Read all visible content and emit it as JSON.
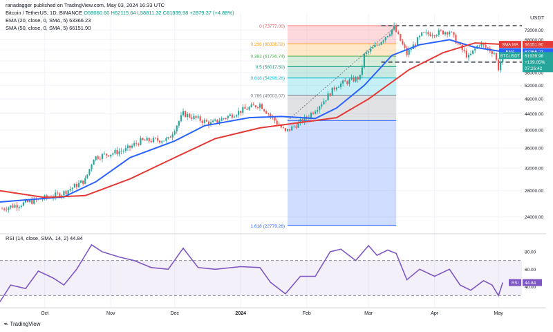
{
  "header": {
    "publisher": "ranadagger published on TradingView.com, May 03, 2024 16:33 UTC",
    "symbol": "Bitcoin / TetherUS, 1D, BINANCE",
    "ohlc": "O59060.60 H62115.64 L58811.32 C61939.98 +2879.37 (+4.88%)",
    "ema": "EMA (20, close, 0, SMA, 5) 63366.23",
    "sma": "SMA (50, close, 0, SMA, 5) 66151.90",
    "rsi": "RSI (14, close, SMA, 14, 2) 44.84"
  },
  "footer": {
    "brand": "TradingView"
  },
  "colors": {
    "up": "#26a69a",
    "down": "#ef5350",
    "ema": "#2962ff",
    "sma": "#e53935",
    "rsi": "#7e57c2",
    "axis_text": "#131722",
    "grid": "#f0f3fa"
  },
  "chart_data": {
    "type": "candlestick",
    "currency_label": "USDT",
    "price_axis": {
      "scale": "log",
      "range": [
        22000,
        76000
      ],
      "ticks": [
        24000,
        28000,
        32000,
        36000,
        40000,
        44000,
        48000,
        52000,
        56000,
        60000,
        64000,
        68000,
        72000
      ],
      "tick_labels": [
        "24000.00",
        "28000.00",
        "32000.00",
        "36000.00",
        "40000.00",
        "44000.00",
        "48000.00",
        "52000.00",
        "56000.00",
        "60000.00",
        "64000.00",
        "68000.00",
        "72000.00"
      ]
    },
    "time_axis": {
      "start": "2023-09-10",
      "end": "2024-05-12",
      "labels": [
        {
          "date": "2023-10-01",
          "text": "Oct"
        },
        {
          "date": "2023-11-01",
          "text": "Nov"
        },
        {
          "date": "2023-12-01",
          "text": "Dec"
        },
        {
          "date": "2024-01-01",
          "text": "2024"
        },
        {
          "date": "2024-02-01",
          "text": "Feb"
        },
        {
          "date": "2024-03-01",
          "text": "Mar"
        },
        {
          "date": "2024-04-01",
          "text": "Apr"
        },
        {
          "date": "2024-05-01",
          "text": "May"
        }
      ]
    },
    "price_key_points": [
      {
        "date": "2023-09-11",
        "price": 25200
      },
      {
        "date": "2023-09-25",
        "price": 26300
      },
      {
        "date": "2023-10-09",
        "price": 27500
      },
      {
        "date": "2023-10-20",
        "price": 29800
      },
      {
        "date": "2023-10-24",
        "price": 34000
      },
      {
        "date": "2023-11-08",
        "price": 35600
      },
      {
        "date": "2023-11-15",
        "price": 37500
      },
      {
        "date": "2023-11-28",
        "price": 37800
      },
      {
        "date": "2023-12-05",
        "price": 44000
      },
      {
        "date": "2023-12-18",
        "price": 41500
      },
      {
        "date": "2024-01-02",
        "price": 45000
      },
      {
        "date": "2024-01-10",
        "price": 46500
      },
      {
        "date": "2024-01-22",
        "price": 39500
      },
      {
        "date": "2024-02-01",
        "price": 43000
      },
      {
        "date": "2024-02-09",
        "price": 47500
      },
      {
        "date": "2024-02-15",
        "price": 52000
      },
      {
        "date": "2024-02-26",
        "price": 54500
      },
      {
        "date": "2024-02-28",
        "price": 62000
      },
      {
        "date": "2024-03-05",
        "price": 66000
      },
      {
        "date": "2024-03-13",
        "price": 73000
      },
      {
        "date": "2024-03-19",
        "price": 62500
      },
      {
        "date": "2024-03-26",
        "price": 70000
      },
      {
        "date": "2024-04-08",
        "price": 71500
      },
      {
        "date": "2024-04-13",
        "price": 65000
      },
      {
        "date": "2024-04-17",
        "price": 61200
      },
      {
        "date": "2024-04-22",
        "price": 66500
      },
      {
        "date": "2024-04-29",
        "price": 63000
      },
      {
        "date": "2024-05-01",
        "price": 57500
      },
      {
        "date": "2024-05-03",
        "price": 61940
      }
    ],
    "series": [
      {
        "name": "EMA",
        "value": 63366.23,
        "values": [
          {
            "date": "2023-09-10",
            "price": 26200
          },
          {
            "date": "2023-10-10",
            "price": 27000
          },
          {
            "date": "2023-10-25",
            "price": 29500
          },
          {
            "date": "2023-11-10",
            "price": 34000
          },
          {
            "date": "2023-12-01",
            "price": 37500
          },
          {
            "date": "2023-12-15",
            "price": 41000
          },
          {
            "date": "2024-01-05",
            "price": 43000
          },
          {
            "date": "2024-01-20",
            "price": 43300
          },
          {
            "date": "2024-02-05",
            "price": 42800
          },
          {
            "date": "2024-02-15",
            "price": 45500
          },
          {
            "date": "2024-02-28",
            "price": 52000
          },
          {
            "date": "2024-03-12",
            "price": 62000
          },
          {
            "date": "2024-03-25",
            "price": 66000
          },
          {
            "date": "2024-04-08",
            "price": 68000
          },
          {
            "date": "2024-04-20",
            "price": 65000
          },
          {
            "date": "2024-05-03",
            "price": 63366
          }
        ]
      },
      {
        "name": "SMA",
        "value": 66151.9,
        "values": [
          {
            "date": "2023-09-10",
            "price": 28000
          },
          {
            "date": "2023-10-01",
            "price": 26900
          },
          {
            "date": "2023-10-20",
            "price": 27200
          },
          {
            "date": "2023-11-10",
            "price": 30000
          },
          {
            "date": "2023-12-01",
            "price": 34000
          },
          {
            "date": "2023-12-20",
            "price": 38000
          },
          {
            "date": "2024-01-10",
            "price": 40500
          },
          {
            "date": "2024-02-01",
            "price": 42000
          },
          {
            "date": "2024-02-15",
            "price": 43000
          },
          {
            "date": "2024-03-01",
            "price": 48000
          },
          {
            "date": "2024-03-20",
            "price": 57000
          },
          {
            "date": "2024-04-05",
            "price": 63000
          },
          {
            "date": "2024-04-20",
            "price": 66700
          },
          {
            "date": "2024-05-03",
            "price": 66152
          }
        ]
      }
    ],
    "fibonacci": {
      "date_range": [
        "2024-01-23",
        "2024-03-14"
      ],
      "levels": [
        {
          "ratio": "0",
          "price": 73777.0,
          "label": "0 (73777.00)"
        },
        {
          "ratio": "0.236",
          "price": 66338.52,
          "label": "0.236 (66338.52)"
        },
        {
          "ratio": "0.382",
          "price": 61736.74,
          "label": "0.382 (61736.74)"
        },
        {
          "ratio": "0.5",
          "price": 58017.5,
          "label": "0.5 (58017.50)"
        },
        {
          "ratio": "0.618",
          "price": 54298.26,
          "label": "0.618 (54298.26)"
        },
        {
          "ratio": "0.786",
          "price": 49003.07,
          "label": "0.786 (49003.07)"
        },
        {
          "ratio": "1",
          "price": 42258.1,
          "label": ""
        },
        {
          "ratio": "1.618",
          "price": 22779.26,
          "label": "1.618 (22779.26)"
        }
      ],
      "colors": [
        "#f7525f",
        "#ff9800",
        "#4caf50",
        "#089981",
        "#00bcd4",
        "#787b86",
        "#2962ff"
      ]
    },
    "horizontal_levels": [
      {
        "price": 73777,
        "label": ""
      },
      {
        "price": 59600,
        "label": "59600.00"
      }
    ],
    "price_labels": [
      {
        "text": "SMA:MA",
        "value": "66151.90",
        "price": 66151.9,
        "color": "#e53935"
      },
      {
        "text": "EMA",
        "value": "63366.23",
        "price": 63366.23,
        "color": "#2962ff"
      },
      {
        "text": "BTCUSDT",
        "value": "61939.98",
        "extra": "+139.05%",
        "timer": "07:26:42",
        "price": 61939.98,
        "color": "#26a69a"
      }
    ],
    "rsi": {
      "name": "RSI",
      "value": 44.84,
      "levels": [
        70,
        30
      ],
      "ticks": [
        40,
        60,
        80
      ],
      "tick_labels": [
        "40.00",
        "60.00",
        "80.00"
      ],
      "range": [
        20,
        95
      ],
      "values": [
        {
          "date": "2023-09-10",
          "v": 23
        },
        {
          "date": "2023-09-15",
          "v": 42
        },
        {
          "date": "2023-09-22",
          "v": 38
        },
        {
          "date": "2023-09-28",
          "v": 58
        },
        {
          "date": "2023-10-05",
          "v": 50
        },
        {
          "date": "2023-10-10",
          "v": 42
        },
        {
          "date": "2023-10-16",
          "v": 60
        },
        {
          "date": "2023-10-23",
          "v": 88
        },
        {
          "date": "2023-10-28",
          "v": 80
        },
        {
          "date": "2023-11-05",
          "v": 74
        },
        {
          "date": "2023-11-12",
          "v": 70
        },
        {
          "date": "2023-11-20",
          "v": 62
        },
        {
          "date": "2023-11-28",
          "v": 60
        },
        {
          "date": "2023-12-05",
          "v": 84
        },
        {
          "date": "2023-12-12",
          "v": 62
        },
        {
          "date": "2023-12-20",
          "v": 60
        },
        {
          "date": "2024-01-01",
          "v": 63
        },
        {
          "date": "2024-01-10",
          "v": 62
        },
        {
          "date": "2024-01-15",
          "v": 45
        },
        {
          "date": "2024-01-22",
          "v": 32
        },
        {
          "date": "2024-01-29",
          "v": 52
        },
        {
          "date": "2024-02-05",
          "v": 52
        },
        {
          "date": "2024-02-12",
          "v": 80
        },
        {
          "date": "2024-02-17",
          "v": 83
        },
        {
          "date": "2024-02-24",
          "v": 70
        },
        {
          "date": "2024-03-01",
          "v": 87
        },
        {
          "date": "2024-03-05",
          "v": 76
        },
        {
          "date": "2024-03-10",
          "v": 82
        },
        {
          "date": "2024-03-14",
          "v": 78
        },
        {
          "date": "2024-03-19",
          "v": 48
        },
        {
          "date": "2024-03-25",
          "v": 60
        },
        {
          "date": "2024-04-01",
          "v": 52
        },
        {
          "date": "2024-04-08",
          "v": 60
        },
        {
          "date": "2024-04-13",
          "v": 42
        },
        {
          "date": "2024-04-18",
          "v": 36
        },
        {
          "date": "2024-04-24",
          "v": 47
        },
        {
          "date": "2024-04-28",
          "v": 42
        },
        {
          "date": "2024-05-01",
          "v": 30
        },
        {
          "date": "2024-05-03",
          "v": 44.84
        }
      ]
    }
  }
}
